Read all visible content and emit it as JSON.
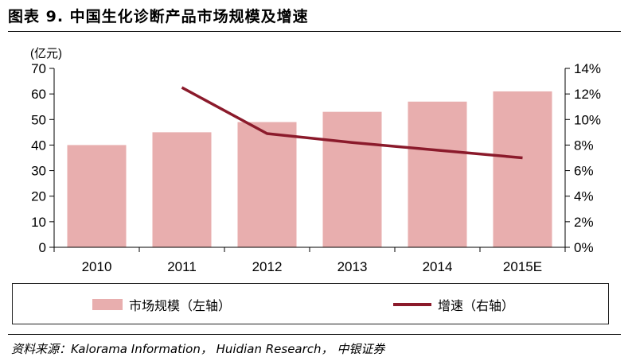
{
  "header": {
    "title": "图表 9. 中国生化诊断产品市场规模及增速"
  },
  "chart_data": {
    "type": "bar",
    "categories": [
      "2010",
      "2011",
      "2012",
      "2013",
      "2014",
      "2015E"
    ],
    "unit_label": "(亿元)",
    "series": [
      {
        "name": "市场规模（左轴）",
        "type": "bar",
        "axis": "left",
        "values": [
          40,
          45,
          49,
          53,
          57,
          61
        ]
      },
      {
        "name": "增速（右轴）",
        "type": "line",
        "axis": "right",
        "values": [
          null,
          12.5,
          8.9,
          8.2,
          7.6,
          7.0
        ]
      }
    ],
    "ylim_left": [
      0,
      70
    ],
    "yticks_left": [
      "0",
      "10",
      "20",
      "30",
      "40",
      "50",
      "60",
      "70"
    ],
    "ylim_right": [
      0,
      14
    ],
    "yticks_right": [
      "0%",
      "2%",
      "4%",
      "6%",
      "8%",
      "10%",
      "12%",
      "14%"
    ],
    "legend_position": "bottom",
    "grid": false
  },
  "colors": {
    "bar": "#e8aeae",
    "line": "#8b1a2b",
    "axis": "#000000"
  },
  "legend": {
    "bar_label": "市场规模（左轴）",
    "line_label": "增速（右轴）"
  },
  "footer": {
    "source": "资料来源：Kalorama Information， Huidian Research， 中银证券"
  }
}
